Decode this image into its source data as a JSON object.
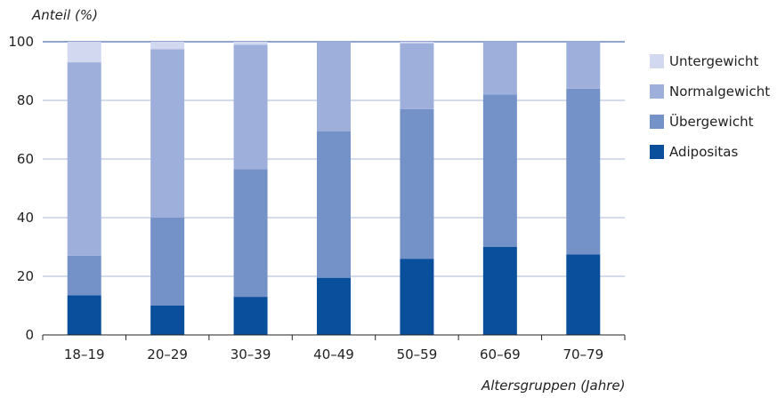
{
  "chart_data": {
    "type": "bar",
    "stacked": true,
    "ylabel": "Anteil (%)",
    "xlabel": "Altersgruppen (Jahre)",
    "ylim": [
      0,
      100
    ],
    "yticks": [
      "0",
      "20",
      "40",
      "60",
      "80",
      "100"
    ],
    "categories": [
      "18–19",
      "20–29",
      "30–39",
      "40–49",
      "50–59",
      "60–69",
      "70–79"
    ],
    "series": [
      {
        "name": "Adipositas",
        "color": "#0a4f9c",
        "values": [
          13.5,
          10,
          13,
          19.5,
          26,
          30,
          27.5
        ]
      },
      {
        "name": "Übergewicht",
        "color": "#7491c8",
        "values": [
          13.5,
          30,
          43.5,
          50,
          51,
          52,
          56.5
        ]
      },
      {
        "name": "Normalgewicht",
        "color": "#9fafdb",
        "values": [
          66,
          57.5,
          42.5,
          30.5,
          22.5,
          18,
          16
        ]
      },
      {
        "name": "Untergewicht",
        "color": "#d1d8f0",
        "values": [
          7,
          2.5,
          1,
          0,
          0.5,
          0,
          0
        ]
      }
    ],
    "legend_position": "right",
    "grid": true
  }
}
